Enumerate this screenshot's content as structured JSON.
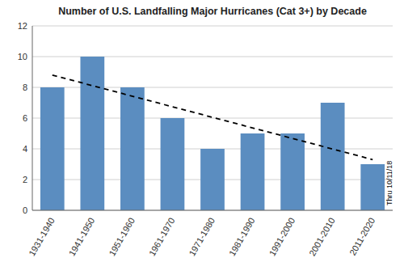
{
  "chart_data": {
    "type": "bar",
    "title": "Number of U.S. Landfalling Major Hurricanes (Cat 3+) by Decade",
    "categories": [
      "1931-1940",
      "1941-1950",
      "1951-1960",
      "1961-1970",
      "1971-1980",
      "1981-1990",
      "1991-2000",
      "2001-2010",
      "2011-2020"
    ],
    "values": [
      8,
      10,
      8,
      6,
      4,
      5,
      5,
      7,
      3
    ],
    "color": "#5b8dc0",
    "ylim": [
      0,
      12
    ],
    "yticks": [
      0,
      2,
      4,
      6,
      8,
      10,
      12
    ],
    "grid": true,
    "trend": {
      "values": [
        8.8,
        3.3
      ],
      "color": "#000000",
      "line_style": "dashed"
    },
    "annotation": "Thru 10/11/18"
  }
}
